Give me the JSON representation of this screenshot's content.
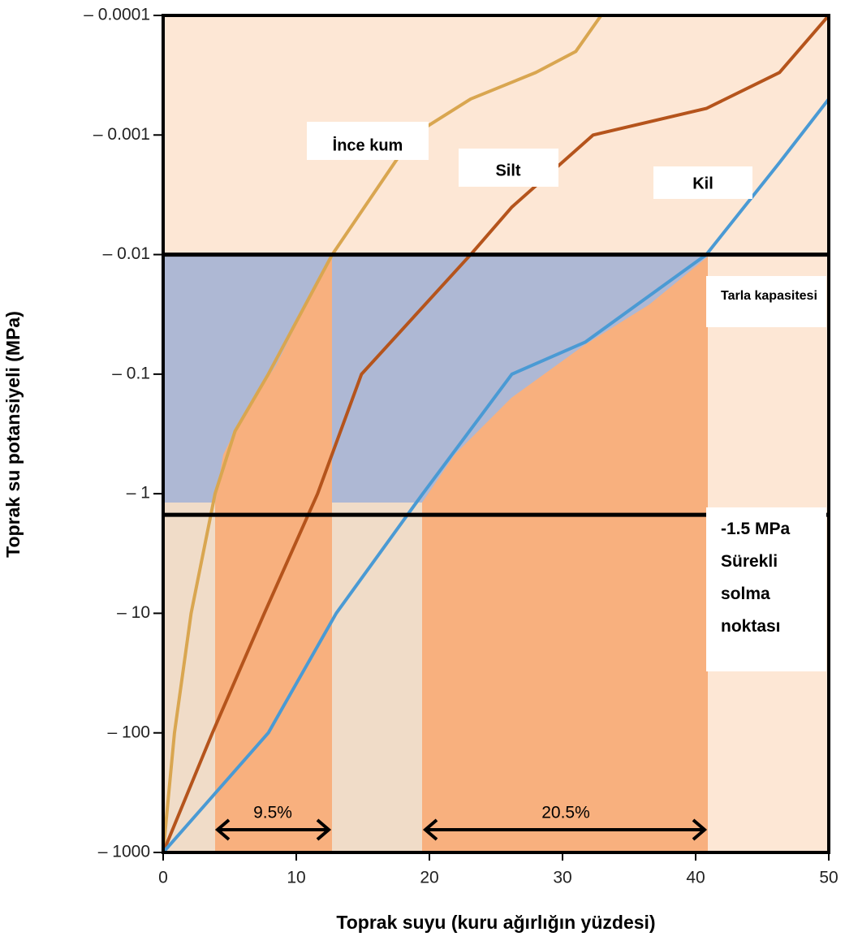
{
  "chart_data": {
    "type": "line",
    "x_label": "Toprak suyu (kuru ağırlığın yüzdesi)",
    "y_label": "Toprak su potansiyeli (MPa)",
    "xlim": [
      0,
      50
    ],
    "xticks": [
      0,
      10,
      20,
      30,
      40,
      50
    ],
    "ylim": [
      -1000,
      -0.0001
    ],
    "log_scale": true,
    "yticks": [
      {
        "value": -0.0001,
        "label": "– 0.0001"
      },
      {
        "value": -0.001,
        "label": "– 0.001"
      },
      {
        "value": -0.01,
        "label": "– 0.01"
      },
      {
        "value": -0.1,
        "label": "– 0.1"
      },
      {
        "value": -1,
        "label": "– 1"
      },
      {
        "value": -10,
        "label": "– 10"
      },
      {
        "value": -100,
        "label": "– 100"
      },
      {
        "value": -1000,
        "label": "– 1000"
      }
    ],
    "reference_lines": [
      -0.01,
      -1.5
    ],
    "series": [
      {
        "name": "İnce kum",
        "color": "#d9a650",
        "x": [
          0,
          0.85,
          2.1,
          3.9,
          5.4,
          7.9,
          12.7,
          18.8,
          23.1,
          28,
          31,
          32.9
        ],
        "values": [
          -1000,
          -100,
          -10,
          -1,
          -0.3,
          -0.1,
          -0.01,
          -0.001,
          -0.0005,
          -0.0003,
          -0.0002,
          -0.0001
        ]
      },
      {
        "name": "Silt",
        "color": "#b5541c",
        "x": [
          0,
          3.7,
          7.6,
          11.6,
          14.9,
          23.1,
          26.2,
          32.3,
          40.8,
          46.3,
          50
        ],
        "values": [
          -1000,
          -100,
          -10,
          -1,
          -0.1,
          -0.01,
          -0.004,
          -0.001,
          -0.0006,
          -0.0003,
          -0.0001
        ]
      },
      {
        "name": "Kil",
        "color": "#4a9ad4",
        "x": [
          0,
          7.9,
          13,
          19.5,
          26.2,
          31.7,
          40.8,
          46.3,
          50
        ],
        "values": [
          -1000,
          -100,
          -10,
          -1,
          -0.1,
          -0.054,
          -0.01,
          -0.0017,
          -0.0005
        ]
      }
    ],
    "annotations": [
      "Tarla kapasitesi",
      "-1.5 MPa Sürekli solma noktası",
      "9.5%",
      "20.5%"
    ]
  }
}
